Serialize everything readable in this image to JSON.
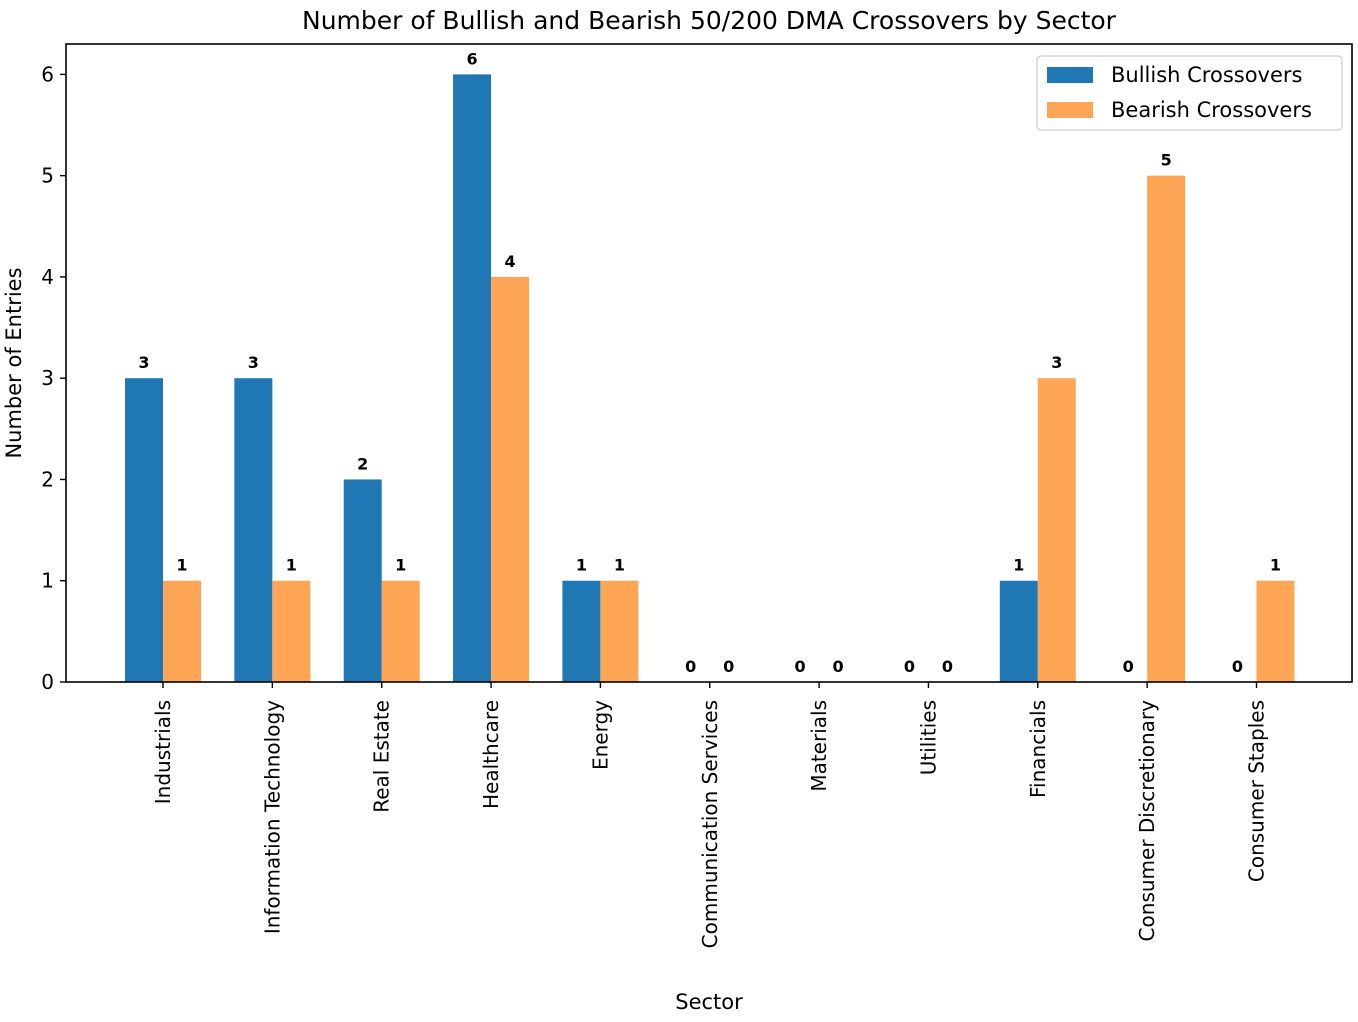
{
  "chart_data": {
    "type": "bar",
    "title": "Number of Bullish and Bearish 50/200 DMA Crossovers by Sector",
    "xlabel": "Sector",
    "ylabel": "Number of Entries",
    "ylim": [
      0,
      6.3
    ],
    "yticks": [
      0,
      1,
      2,
      3,
      4,
      5,
      6
    ],
    "grid": false,
    "legend_position": "top-right",
    "categories": [
      "Industrials",
      "Information Technology",
      "Real Estate",
      "Healthcare",
      "Energy",
      "Communication Services",
      "Materials",
      "Utilities",
      "Financials",
      "Consumer Discretionary",
      "Consumer Staples"
    ],
    "series": [
      {
        "name": "Bullish Crossovers",
        "color": "#1f77b4",
        "values": [
          3,
          3,
          2,
          6,
          1,
          0,
          0,
          0,
          1,
          0,
          0
        ]
      },
      {
        "name": "Bearish Crossovers",
        "color": "#ffa556",
        "values": [
          1,
          1,
          1,
          4,
          1,
          0,
          0,
          0,
          3,
          5,
          1
        ]
      }
    ]
  }
}
